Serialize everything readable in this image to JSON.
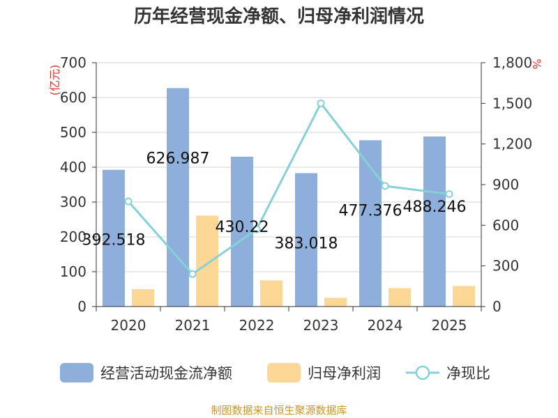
{
  "chart_data": {
    "type": "bar",
    "title": "历年经营现金净额、归母净利润情况",
    "categories": [
      "2020",
      "2021",
      "2022",
      "2023",
      "2024",
      "2025"
    ],
    "series": [
      {
        "name": "经营活动现金流净额",
        "kind": "bar",
        "axis": "left",
        "color": "#8eaedb",
        "values": [
          392.518,
          626.987,
          430.22,
          383.018,
          477.376,
          488.246
        ],
        "labels": [
          "392.518",
          "626.987",
          "430.22",
          "383.018",
          "477.376",
          "488.246"
        ]
      },
      {
        "name": "归母净利润",
        "kind": "bar",
        "axis": "left",
        "color": "#fdd795",
        "values": [
          50,
          261,
          75,
          25,
          53,
          59
        ]
      },
      {
        "name": "净现比",
        "kind": "line",
        "axis": "right",
        "color": "#86d1d6",
        "values": [
          776,
          240,
          570,
          1500,
          890,
          830
        ]
      }
    ],
    "yleft": {
      "unit": "(亿元)",
      "ylim": [
        0,
        700
      ],
      "ticks": [
        "0",
        "100",
        "200",
        "300",
        "400",
        "500",
        "600",
        "700"
      ]
    },
    "yright": {
      "unit": "%",
      "ylim": [
        0,
        1800
      ],
      "ticks": [
        "0",
        "300",
        "600",
        "900",
        "1,200",
        "1,500",
        "1,800"
      ]
    },
    "grid": true,
    "legend_position": "bottom"
  },
  "source": "制图数据来自恒生聚源数据库"
}
